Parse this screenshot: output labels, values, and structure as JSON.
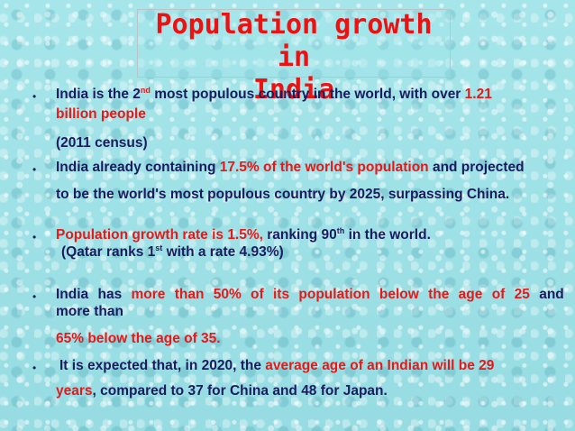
{
  "title": {
    "line1": "Population growth in",
    "line2": "India"
  },
  "bullet_glyph": "•",
  "b1": {
    "a": "India is the 2",
    "a_sup": "nd",
    "b": " most populous country in the world, with over ",
    "c": "1.21",
    "line2": "billion people",
    "line3": "(2011 census)"
  },
  "b2": {
    "a": "India already containing ",
    "b": "17.5% of the world's population",
    "c": " and projected",
    "line2": "to be the  world's most populous country by 2025, surpassing China."
  },
  "b3": {
    "a": "Population growth rate is 1.5%,",
    "b": " ranking 90",
    "b_sup": "th",
    "c": " in the world.",
    "line2_a": "(Qatar ranks 1",
    "line2_sup": "st",
    "line2_b": " with a rate 4.93%)"
  },
  "b4": {
    "a": "India has ",
    "b": "more than 50% of its population below the age of 25",
    "c": " and",
    "line2": "more than",
    "line3": "65% below the age of 35."
  },
  "b5": {
    "a": "It is expected that, in 2020, the ",
    "b": "average age of an Indian will be 29",
    "line2_a": "years",
    "line2_b": ",  compared to 37 for China and 48 for Japan."
  },
  "colors": {
    "title_red": "#ee1111",
    "text_dark": "#1b1b5e",
    "highlight_red": "#e81818",
    "background": "#9fe2e6"
  }
}
